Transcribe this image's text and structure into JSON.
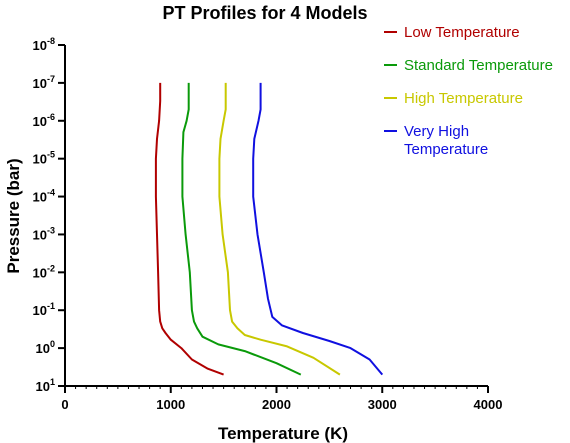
{
  "chart_data": {
    "type": "line",
    "title": "PT Profiles for 4 Models",
    "xlabel": "Temperature (K)",
    "ylabel": "Pressure (bar)",
    "xlim": [
      0,
      4000
    ],
    "x_ticks": [
      "0",
      "1000",
      "2000",
      "3000",
      "4000"
    ],
    "y_scale": "log",
    "y_inverted": true,
    "ylim_exponents": [
      -8,
      1
    ],
    "y_tick_exponents": [
      "-8",
      "-7",
      "-6",
      "-5",
      "-4",
      "-3",
      "-2",
      "-1",
      "0",
      "1"
    ],
    "y_tick_base": "10",
    "grid": false,
    "legend_position": "right",
    "series": [
      {
        "name": "Low Temperature",
        "color": "#b00000",
        "points": [
          [
            900,
            1e-07
          ],
          [
            900,
            3e-07
          ],
          [
            890,
            1e-06
          ],
          [
            870,
            3e-06
          ],
          [
            860,
            1e-05
          ],
          [
            860,
            0.0001
          ],
          [
            870,
            0.001
          ],
          [
            880,
            0.01
          ],
          [
            890,
            0.1
          ],
          [
            900,
            0.2
          ],
          [
            920,
            0.3
          ],
          [
            950,
            0.4
          ],
          [
            1000,
            0.6
          ],
          [
            1100,
            1
          ],
          [
            1200,
            2
          ],
          [
            1350,
            3.5
          ],
          [
            1500,
            5
          ]
        ]
      },
      {
        "name": "Standard Temperature",
        "color": "#0a9a0a",
        "points": [
          [
            1170,
            1e-07
          ],
          [
            1170,
            5e-07
          ],
          [
            1150,
            1e-06
          ],
          [
            1120,
            2e-06
          ],
          [
            1110,
            1e-05
          ],
          [
            1110,
            0.0001
          ],
          [
            1140,
            0.001
          ],
          [
            1180,
            0.01
          ],
          [
            1200,
            0.1
          ],
          [
            1220,
            0.2
          ],
          [
            1250,
            0.3
          ],
          [
            1300,
            0.5
          ],
          [
            1450,
            0.8
          ],
          [
            1700,
            1.2
          ],
          [
            2000,
            2.5
          ],
          [
            2230,
            5
          ]
        ]
      },
      {
        "name": "High Temperature",
        "color": "#c8c800",
        "points": [
          [
            1520,
            1e-07
          ],
          [
            1520,
            5e-07
          ],
          [
            1500,
            1e-06
          ],
          [
            1470,
            3e-06
          ],
          [
            1460,
            1e-05
          ],
          [
            1460,
            0.0001
          ],
          [
            1490,
            0.001
          ],
          [
            1540,
            0.01
          ],
          [
            1560,
            0.1
          ],
          [
            1580,
            0.2
          ],
          [
            1630,
            0.3
          ],
          [
            1700,
            0.45
          ],
          [
            1850,
            0.6
          ],
          [
            2100,
            0.9
          ],
          [
            2350,
            1.8
          ],
          [
            2600,
            5
          ]
        ]
      },
      {
        "name": "Very High Temperature",
        "color": "#1010e0",
        "points": [
          [
            1850,
            1e-07
          ],
          [
            1850,
            5e-07
          ],
          [
            1830,
            1e-06
          ],
          [
            1790,
            3e-06
          ],
          [
            1780,
            1e-05
          ],
          [
            1780,
            0.0001
          ],
          [
            1820,
            0.001
          ],
          [
            1880,
            0.01
          ],
          [
            1920,
            0.05
          ],
          [
            1960,
            0.15
          ],
          [
            2050,
            0.25
          ],
          [
            2250,
            0.4
          ],
          [
            2500,
            0.65
          ],
          [
            2700,
            1
          ],
          [
            2880,
            2
          ],
          [
            3000,
            5
          ]
        ]
      }
    ]
  }
}
